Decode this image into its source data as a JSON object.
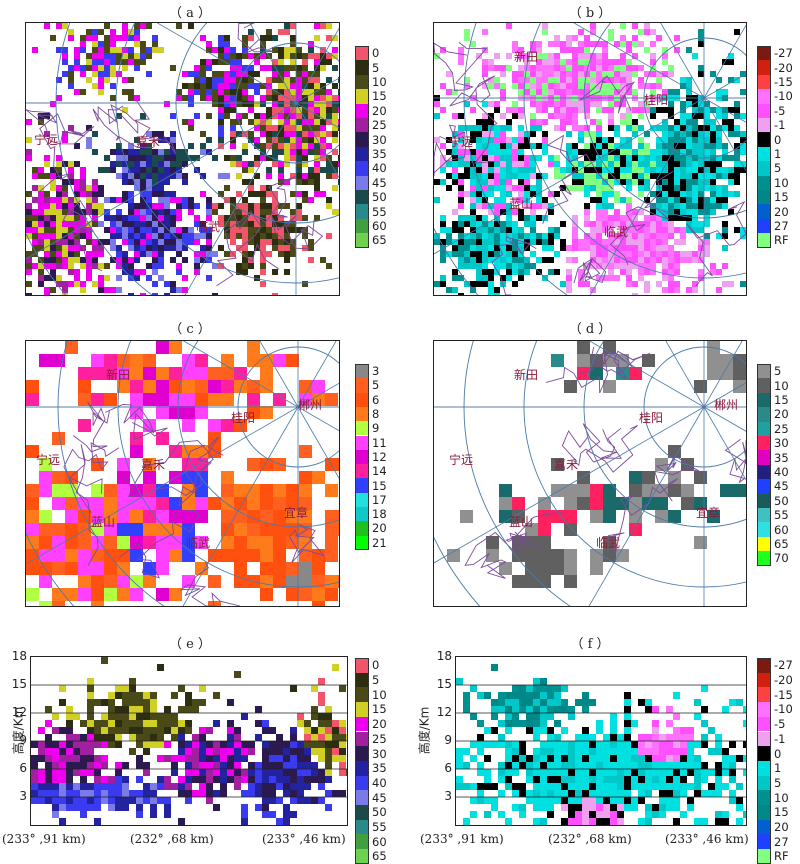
{
  "panels": {
    "a": "（ a ）",
    "b": "（ b ）",
    "c": "（ c ）",
    "d": "（ d ）",
    "e": "（ e ）",
    "f": "（ f ）"
  },
  "cities": {
    "ningyuan": "宁远",
    "jiahe": "嘉禾",
    "xintian": "新田",
    "guiyang": "桂阳",
    "chenzhou": "郴州",
    "lanshan": "蓝山",
    "linwu": "临武",
    "yizhang": "宜章"
  },
  "colorbars": {
    "reflectivity": {
      "ticks": [
        "0",
        "5",
        "10",
        "15",
        "20",
        "25",
        "30",
        "35",
        "40",
        "45",
        "50",
        "55",
        "60",
        "65"
      ],
      "colors": [
        "#f0556a",
        "#2d2d12",
        "#4a4a18",
        "#cfcf25",
        "#ee00ee",
        "#a020a0",
        "#2b1a4f",
        "#2323a0",
        "#3a3aee",
        "#7a7ae8",
        "#1a4a4a",
        "#2a8a8a",
        "#40a040",
        "#70d050"
      ]
    },
    "velocity": {
      "ticks": [
        "-27",
        "-20",
        "-15",
        "-10",
        "-5",
        "-1",
        "0",
        "1",
        "5",
        "10",
        "15",
        "20",
        "27",
        "RF"
      ],
      "colors": [
        "#7a1a10",
        "#d02010",
        "#ff4040",
        "#ff70ff",
        "#ff50ff",
        "#f0a0f0",
        "#000000",
        "#00e0e0",
        "#00c8c8",
        "#009090",
        "#008888",
        "#0060d0",
        "#2040ff",
        "#80ff80"
      ]
    },
    "c_scale": {
      "ticks": [
        "3",
        "5",
        "6",
        "8",
        "9",
        "11",
        "12",
        "14",
        "15",
        "17",
        "18",
        "20",
        "21"
      ],
      "colors": [
        "#888888",
        "#ff6020",
        "#ff5010",
        "#ff7a1a",
        "#b0ff40",
        "#ff40ff",
        "#e000d0",
        "#ff20a0",
        "#3040ff",
        "#20e0e0",
        "#10c8c8",
        "#20c020",
        "#00ff00"
      ]
    },
    "d_scale": {
      "ticks": [
        "5",
        "10",
        "15",
        "20",
        "25",
        "30",
        "35",
        "40",
        "45",
        "50",
        "55",
        "60",
        "65",
        "70"
      ],
      "colors": [
        "#909090",
        "#606060",
        "#1a6a6a",
        "#2a8a8a",
        "#20a0a0",
        "#ff2060",
        "#e000c0",
        "#202080",
        "#2040ff",
        "#1a5a5a",
        "#40c0c0",
        "#30e0e0",
        "#ffff00",
        "#20ff20"
      ]
    }
  },
  "xsection": {
    "ylabel": "高度/Km",
    "yticks": [
      "18",
      "15",
      "12",
      "9",
      "6",
      "3"
    ],
    "xticks": [
      "(233° ,91 km)",
      "(232° ,68 km)",
      "(233° ,46 km)"
    ]
  },
  "chart_data": [
    {
      "type": "heatmap",
      "title": "",
      "panel": "a",
      "colorbar": [
        "0",
        "5",
        "10",
        "15",
        "20",
        "25",
        "30",
        "35",
        "40",
        "45",
        "50",
        "55",
        "60",
        "65"
      ]
    },
    {
      "type": "heatmap",
      "title": "",
      "panel": "b",
      "colorbar": [
        "-27",
        "-20",
        "-15",
        "-10",
        "-5",
        "-1",
        "0",
        "1",
        "5",
        "10",
        "15",
        "20",
        "27",
        "RF"
      ]
    },
    {
      "type": "heatmap",
      "title": "",
      "panel": "c",
      "colorbar": [
        "3",
        "5",
        "6",
        "8",
        "9",
        "11",
        "12",
        "14",
        "15",
        "17",
        "18",
        "20",
        "21"
      ]
    },
    {
      "type": "heatmap",
      "title": "",
      "panel": "d",
      "colorbar": [
        "5",
        "10",
        "15",
        "20",
        "25",
        "30",
        "35",
        "40",
        "45",
        "50",
        "55",
        "60",
        "65",
        "70"
      ]
    },
    {
      "type": "heatmap",
      "title": "",
      "panel": "e",
      "ylabel": "高度/Km",
      "ylim": [
        0,
        18
      ],
      "yticks": [
        3,
        6,
        9,
        12,
        15,
        18
      ],
      "xticks": [
        "(233° ,91 km)",
        "(232° ,68 km)",
        "(233° ,46 km)"
      ]
    },
    {
      "type": "heatmap",
      "title": "",
      "panel": "f",
      "ylabel": "高度/Km",
      "ylim": [
        0,
        18
      ],
      "yticks": [
        3,
        6,
        9,
        12,
        15,
        18
      ],
      "xticks": [
        "(233° ,91 km)",
        "(232° ,68 km)",
        "(233° ,46 km)"
      ]
    }
  ]
}
